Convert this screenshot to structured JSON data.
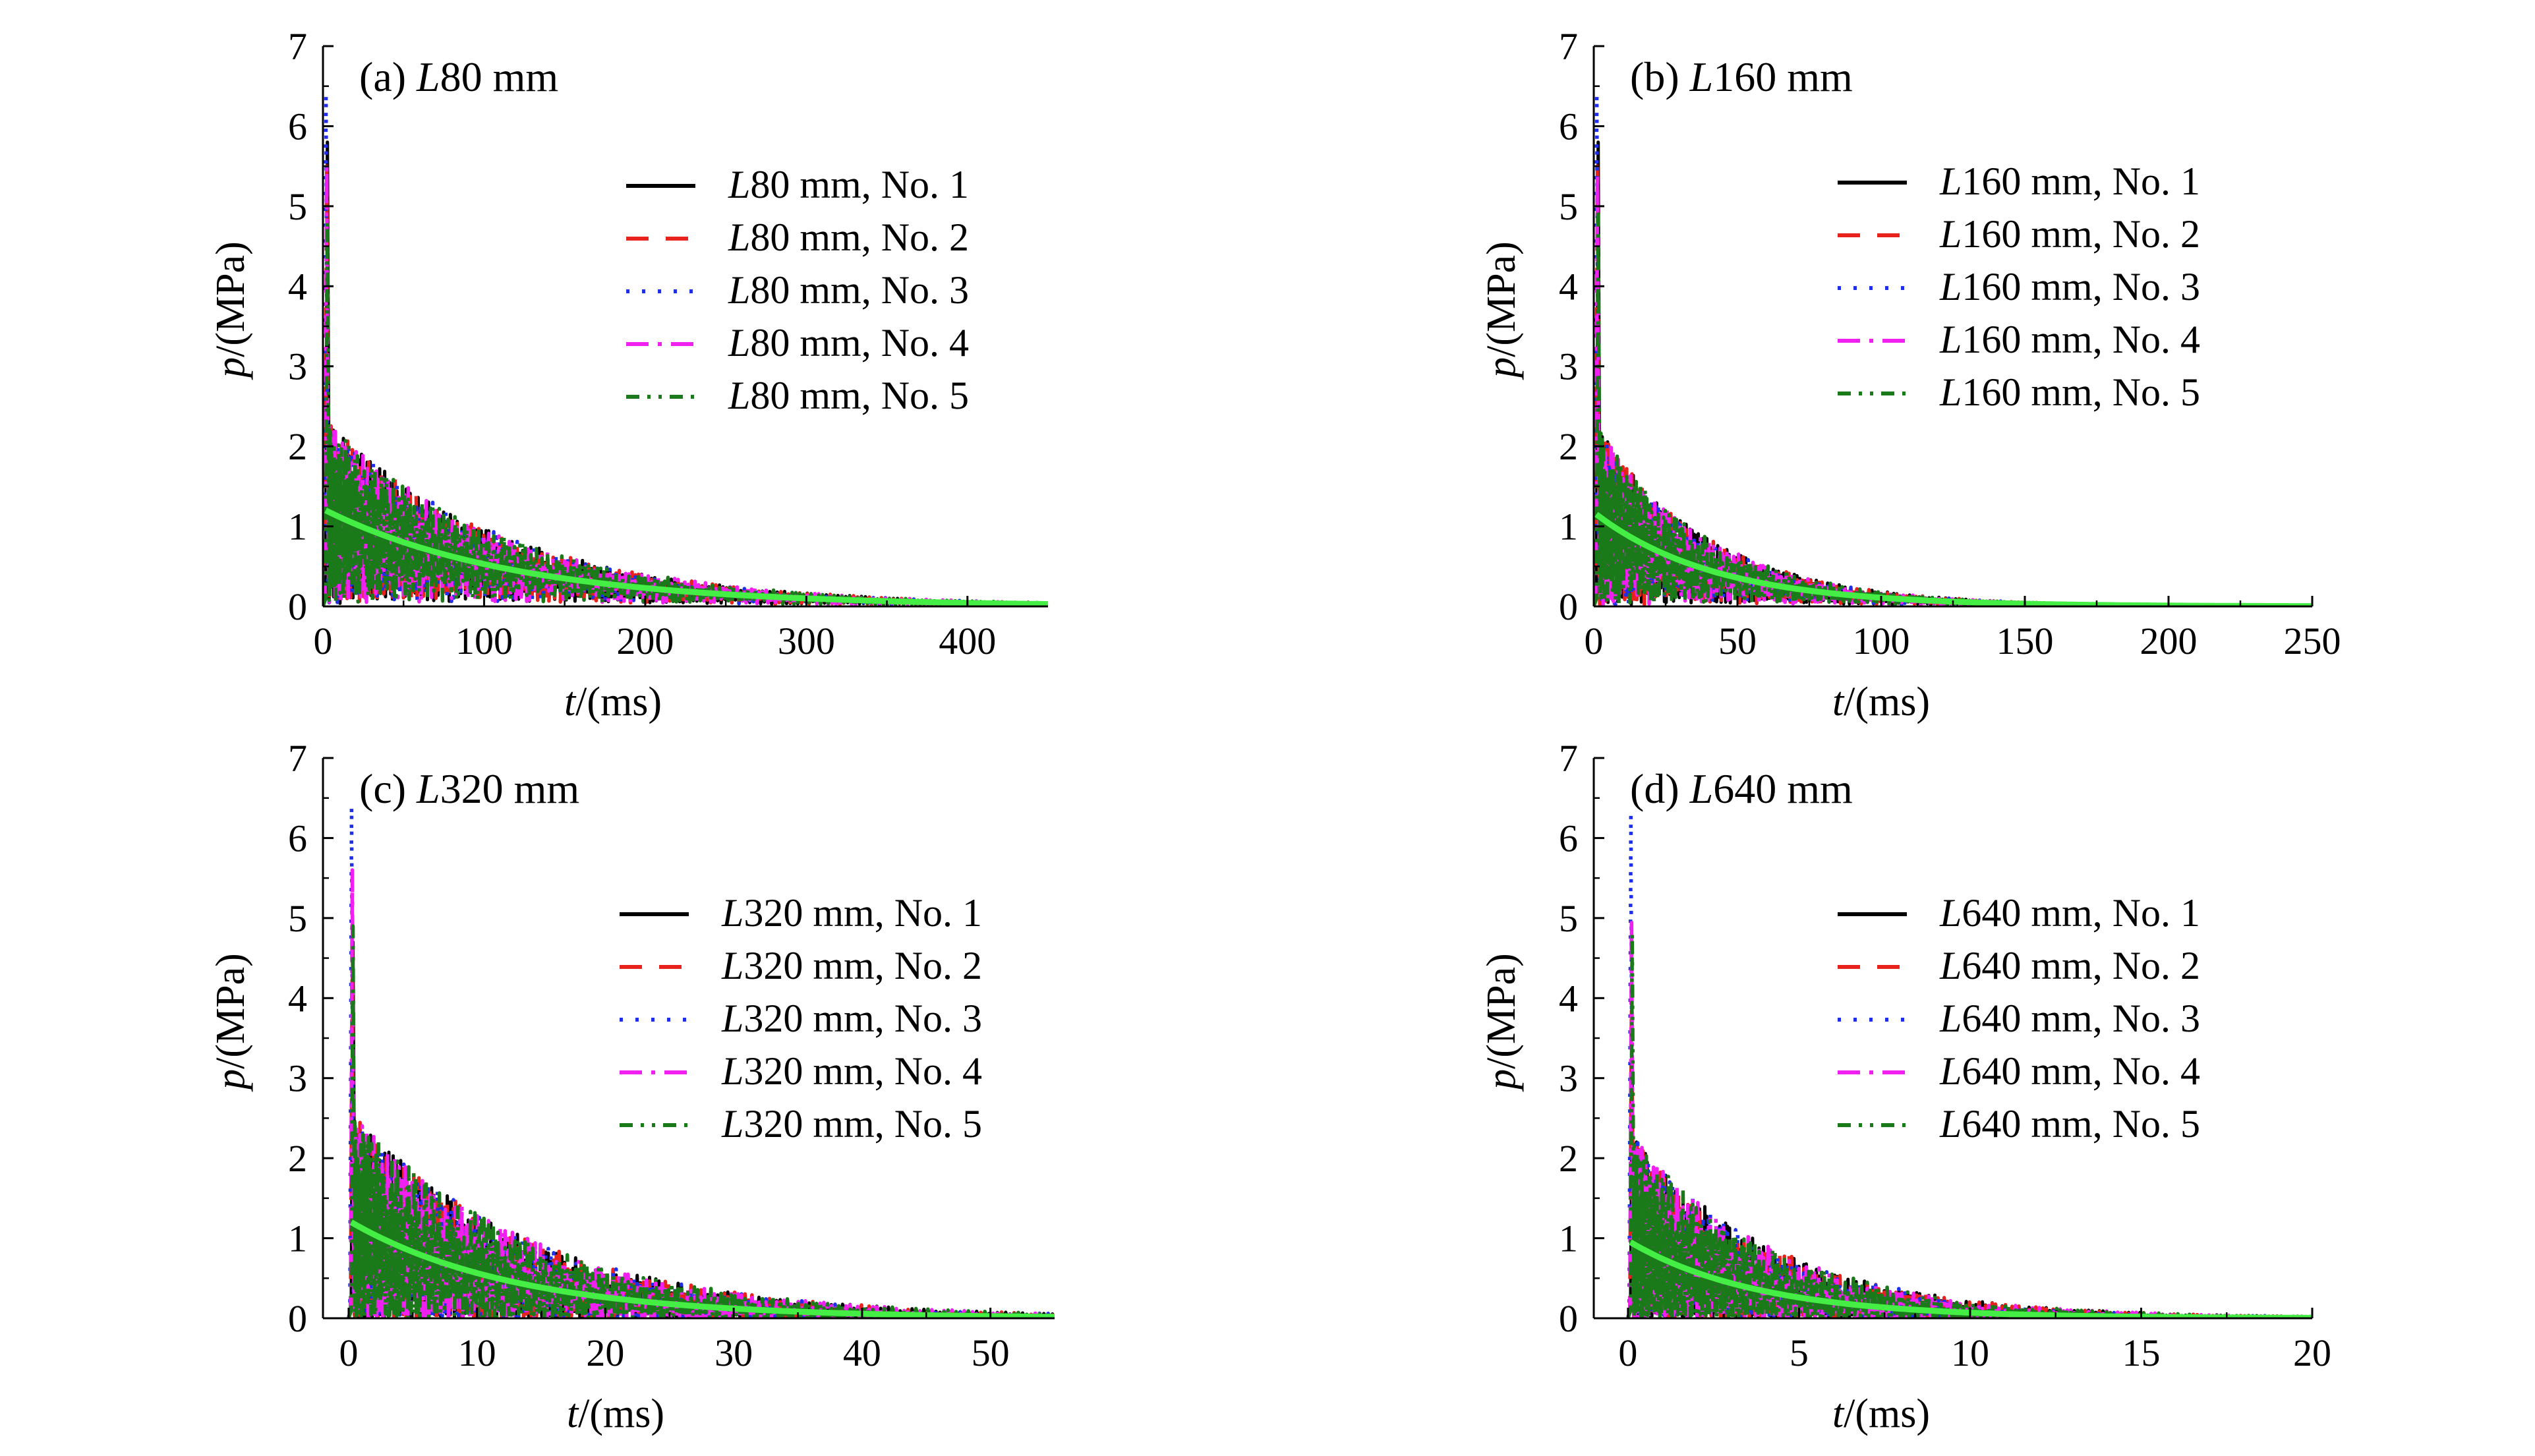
{
  "colors": {
    "series": [
      "#000000",
      "#e8221c",
      "#1f2ee8",
      "#f020f0",
      "#1a7a1a"
    ],
    "fit": "#44ee44"
  },
  "chart_data": [
    {
      "type": "line",
      "title_prefix": "(a) ",
      "title_var": "L",
      "title_suffix": "80 mm",
      "xlabel_var": "t",
      "xlabel_suffix": "/(ms)",
      "ylabel_var": "p",
      "ylabel_suffix": "/(MPa)",
      "xlim": [
        0,
        450
      ],
      "ylim": [
        0,
        7
      ],
      "xticks": [
        0,
        100,
        200,
        300,
        400
      ],
      "yticks": [
        0,
        1,
        2,
        3,
        4,
        5,
        6,
        7
      ],
      "legend_position": "right",
      "peaks": [
        5.8,
        5.5,
        6.4,
        5.5,
        4.8
      ],
      "fit": {
        "p0": 1.2,
        "tau": 120
      },
      "series": [
        {
          "name_var": "L",
          "name_suffix": "80 mm, No. 1"
        },
        {
          "name_var": "L",
          "name_suffix": "80 mm, No. 2"
        },
        {
          "name_var": "L",
          "name_suffix": "80 mm, No. 3"
        },
        {
          "name_var": "L",
          "name_suffix": "80 mm, No. 4"
        },
        {
          "name_var": "L",
          "name_suffix": "80 mm, No. 5"
        }
      ]
    },
    {
      "type": "line",
      "title_prefix": "(b) ",
      "title_var": "L",
      "title_suffix": "160 mm",
      "xlabel_var": "t",
      "xlabel_suffix": "/(ms)",
      "ylabel_var": "p",
      "ylabel_suffix": "/(MPa)",
      "xlim": [
        0,
        250
      ],
      "ylim": [
        0,
        7
      ],
      "xticks": [
        0,
        50,
        100,
        150,
        200,
        250
      ],
      "yticks": [
        0,
        1,
        2,
        3,
        4,
        5,
        6,
        7
      ],
      "legend_position": "right",
      "peaks": [
        5.8,
        5.5,
        6.4,
        5.4,
        4.9
      ],
      "fit": {
        "p0": 1.15,
        "tau": 42
      },
      "series": [
        {
          "name_var": "L",
          "name_suffix": "160 mm, No. 1"
        },
        {
          "name_var": "L",
          "name_suffix": "160 mm, No. 2"
        },
        {
          "name_var": "L",
          "name_suffix": "160 mm, No. 3"
        },
        {
          "name_var": "L",
          "name_suffix": "160 mm, No. 4"
        },
        {
          "name_var": "L",
          "name_suffix": "160 mm, No. 5"
        }
      ]
    },
    {
      "type": "line",
      "title_prefix": "(c) ",
      "title_var": "L",
      "title_suffix": "320 mm",
      "xlabel_var": "t",
      "xlabel_suffix": "/(ms)",
      "ylabel_var": "p",
      "ylabel_suffix": "/(MPa)",
      "xlim": [
        -2,
        55
      ],
      "ylim": [
        0,
        7
      ],
      "xticks": [
        0,
        10,
        20,
        30,
        40,
        50
      ],
      "yticks": [
        0,
        1,
        2,
        3,
        4,
        5,
        6,
        7
      ],
      "legend_position": "right",
      "peaks": [
        4.7,
        4.6,
        6.4,
        5.6,
        4.9
      ],
      "fit": {
        "p0": 1.2,
        "tau": 13
      },
      "series": [
        {
          "name_var": "L",
          "name_suffix": "320 mm, No. 1"
        },
        {
          "name_var": "L",
          "name_suffix": "320 mm, No. 2"
        },
        {
          "name_var": "L",
          "name_suffix": "320 mm, No. 3"
        },
        {
          "name_var": "L",
          "name_suffix": "320 mm, No. 4"
        },
        {
          "name_var": "L",
          "name_suffix": "320 mm, No. 5"
        }
      ]
    },
    {
      "type": "line",
      "title_prefix": "(d) ",
      "title_var": "L",
      "title_suffix": "640 mm",
      "xlabel_var": "t",
      "xlabel_suffix": "/(ms)",
      "ylabel_var": "p",
      "ylabel_suffix": "/(MPa)",
      "xlim": [
        -1,
        20
      ],
      "ylim": [
        0,
        7
      ],
      "xticks": [
        0,
        5,
        10,
        15,
        20
      ],
      "yticks": [
        0,
        1,
        2,
        3,
        4,
        5,
        6,
        7
      ],
      "legend_position": "right",
      "peaks": [
        3.0,
        3.9,
        6.3,
        5.0,
        4.8
      ],
      "fit": {
        "p0": 0.95,
        "tau": 3.8
      },
      "series": [
        {
          "name_var": "L",
          "name_suffix": "640 mm, No. 1"
        },
        {
          "name_var": "L",
          "name_suffix": "640 mm, No. 2"
        },
        {
          "name_var": "L",
          "name_suffix": "640 mm, No. 3"
        },
        {
          "name_var": "L",
          "name_suffix": "640 mm, No. 4"
        },
        {
          "name_var": "L",
          "name_suffix": "640 mm, No. 5"
        }
      ]
    }
  ]
}
